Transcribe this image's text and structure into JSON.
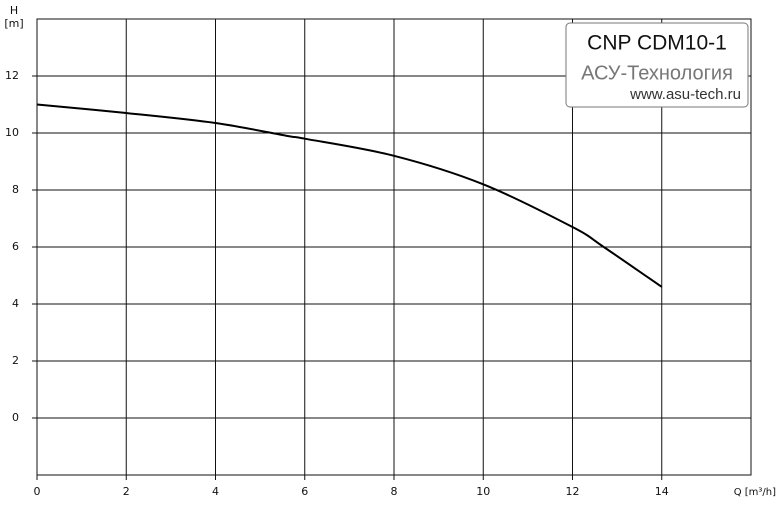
{
  "chart_data": {
    "type": "line",
    "ylabel": "H",
    "yunit": "[m]",
    "xlabel": "Q [m³/h]",
    "x": [
      0,
      2,
      4,
      5.6,
      6,
      8,
      10,
      12,
      12.7,
      14
    ],
    "values": [
      11.0,
      10.7,
      10.35,
      9.9,
      9.8,
      9.2,
      8.2,
      6.7,
      6.0,
      4.6
    ],
    "color": "#000000",
    "xlim": [
      0,
      16
    ],
    "xticks": [
      0,
      2,
      4,
      6,
      8,
      10,
      12,
      14
    ],
    "ylim": [
      -2,
      14
    ],
    "yticks": [
      0,
      2,
      4,
      6,
      8,
      10,
      12
    ],
    "grid": true,
    "annotation": {
      "title": "CNP CDM10-1",
      "company": "АСУ-Технология",
      "site": "www.asu-tech.ru"
    }
  }
}
